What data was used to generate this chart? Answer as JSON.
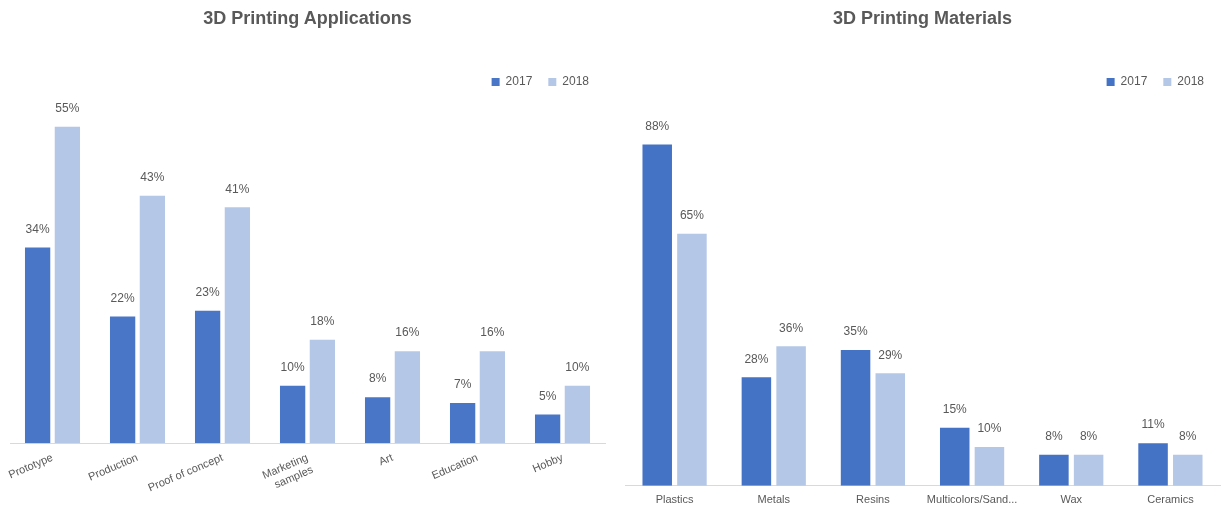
{
  "chart_data": [
    {
      "type": "bar",
      "title": "3D Printing Applications",
      "categories": [
        "Prototype",
        "Production",
        "Proof of concept",
        "Marketing samples",
        "Art",
        "Education",
        "Hobby"
      ],
      "legend": "top right",
      "series": [
        {
          "name": "2017",
          "color": "#4a76c8",
          "values": [
            34,
            22,
            23,
            10,
            8,
            7,
            5
          ],
          "value_labels": [
            "34%",
            "22%",
            "23%",
            "10%",
            "8%",
            "7%",
            "5%"
          ]
        },
        {
          "name": "2018",
          "color": "#b4c7e7",
          "values": [
            55,
            43,
            41,
            18,
            16,
            16,
            10
          ],
          "value_labels": [
            "55%",
            "43%",
            "41%",
            "18%",
            "16%",
            "16%",
            "10%"
          ]
        }
      ]
    },
    {
      "type": "bar",
      "title": "3D Printing Materials",
      "categories": [
        "Plastics",
        "Metals",
        "Resins",
        "Multicolors/Sand...",
        "Wax",
        "Ceramics"
      ],
      "legend": "top right",
      "series": [
        {
          "name": "2017",
          "color": "#4472c4",
          "values": [
            88,
            28,
            35,
            15,
            8,
            11
          ],
          "value_labels": [
            "88%",
            "28%",
            "35%",
            "15%",
            "8%",
            "11%"
          ]
        },
        {
          "name": "2018",
          "color": "#b4c7e7",
          "values": [
            65,
            36,
            29,
            10,
            8,
            8
          ],
          "value_labels": [
            "65%",
            "36%",
            "29%",
            "10%",
            "8%",
            "8%"
          ]
        }
      ]
    }
  ]
}
